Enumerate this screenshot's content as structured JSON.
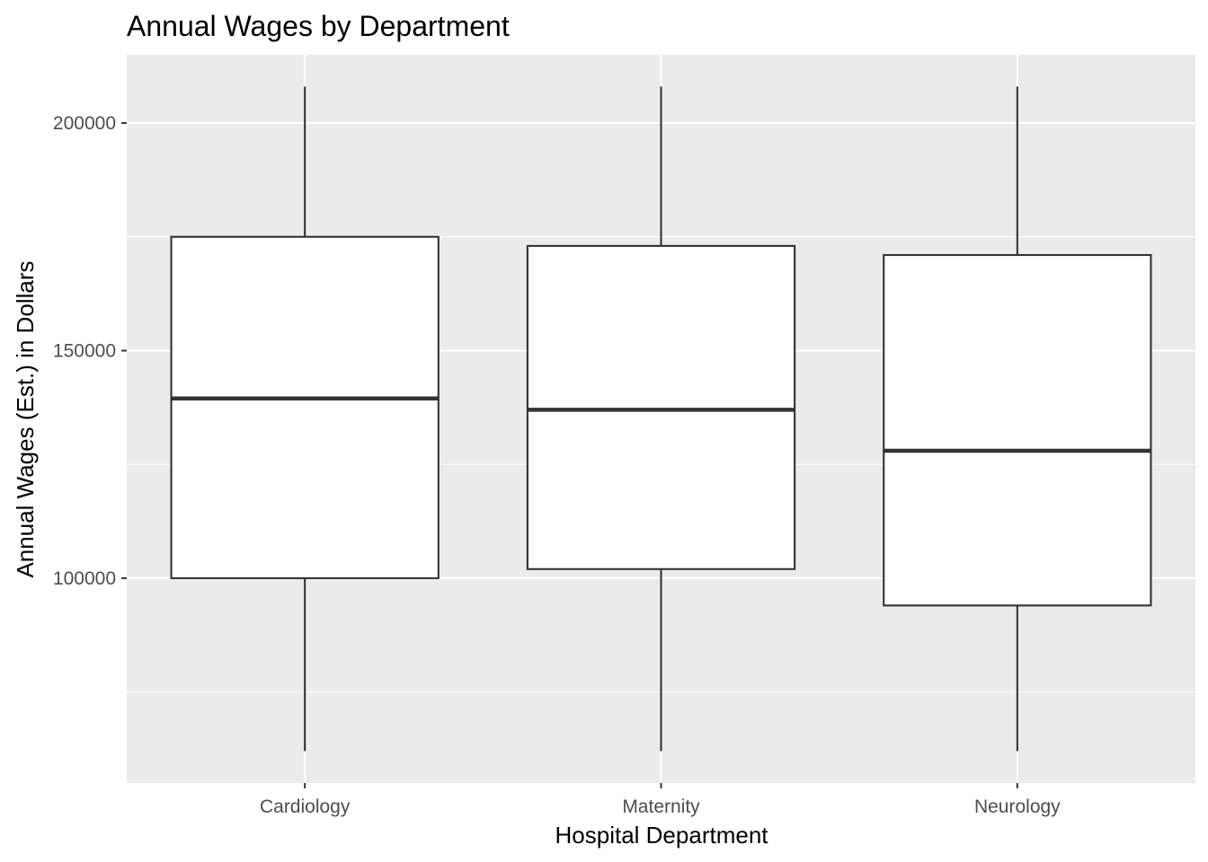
{
  "chart_data": {
    "type": "boxplot",
    "title": "Annual Wages by Department",
    "xlabel": "Hospital Department",
    "ylabel": "Annual Wages (Est.) in Dollars",
    "categories": [
      "Cardiology",
      "Maternity",
      "Neurology"
    ],
    "boxes": [
      {
        "category": "Cardiology",
        "min": 62000,
        "q1": 100000,
        "median": 139500,
        "q3": 175000,
        "max": 208000
      },
      {
        "category": "Maternity",
        "min": 62000,
        "q1": 102000,
        "median": 137000,
        "q3": 173000,
        "max": 208000
      },
      {
        "category": "Neurology",
        "min": 62000,
        "q1": 94000,
        "median": 128000,
        "q3": 171000,
        "max": 208000
      }
    ],
    "ylim": [
      55000,
      215000
    ],
    "y_ticks": [
      100000,
      150000,
      200000
    ],
    "y_tick_labels": [
      "100000",
      "150000",
      "200000"
    ],
    "y_minor_ticks": [
      75000,
      125000,
      175000
    ],
    "grid": true,
    "legend": "none",
    "colors": {
      "panel_background": "#ebebeb",
      "grid_line": "#ffffff",
      "box_fill": "#ffffff",
      "box_stroke": "#333333",
      "tick_label": "#4d4d4d",
      "tick_mark": "#333333",
      "text": "#000000"
    }
  }
}
